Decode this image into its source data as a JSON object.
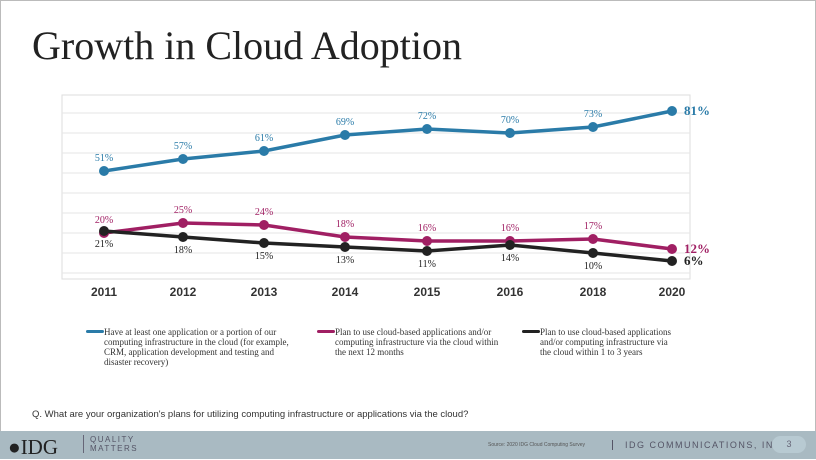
{
  "title": "Growth in Cloud Adoption",
  "chart_data": {
    "type": "line",
    "categories": [
      "2011",
      "2012",
      "2013",
      "2014",
      "2015",
      "2016",
      "2018",
      "2020"
    ],
    "ylim": [
      0,
      90
    ],
    "grid": true,
    "legend_placement": "bottom",
    "series": [
      {
        "name": "Have at least one application or a portion of our computing infrastructure in the cloud (for example, CRM, application development and testing and disaster recovery)",
        "color": "#2a7ba8",
        "values": [
          51,
          57,
          61,
          69,
          72,
          70,
          73,
          81
        ],
        "labels": [
          "51%",
          "57%",
          "61%",
          "69%",
          "72%",
          "70%",
          "73%",
          "81%"
        ]
      },
      {
        "name": "Plan to use cloud-based applications and/or computing infrastructure via the cloud within the next 12 months",
        "color": "#a01f63",
        "values": [
          20,
          25,
          24,
          18,
          16,
          16,
          17,
          12
        ],
        "labels": [
          "20%",
          "25%",
          "24%",
          "18%",
          "16%",
          "16%",
          "17%",
          "12%"
        ]
      },
      {
        "name": "Plan to use cloud-based applications and/or computing infrastructure via the cloud within 1 to 3 years",
        "color": "#222222",
        "values": [
          21,
          18,
          15,
          13,
          11,
          14,
          10,
          6
        ],
        "labels": [
          "21%",
          "18%",
          "15%",
          "13%",
          "11%",
          "14%",
          "10%",
          "6%"
        ]
      }
    ]
  },
  "question": "Q. What are your organization's plans for utilizing computing infrastructure or applications via the cloud?",
  "footer": {
    "logo": "IDG",
    "tagline1": "QUALITY",
    "tagline2": "MATTERS",
    "source": "Source: 2020 IDG Cloud Computing Survey",
    "company": "IDG COMMUNICATIONS, INC.",
    "page": "3"
  }
}
